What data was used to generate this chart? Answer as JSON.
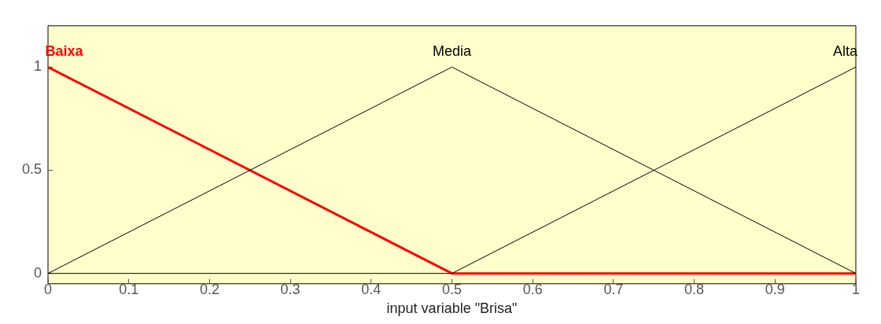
{
  "chart_data": {
    "type": "line",
    "xlabel": "input variable \"Brisa\"",
    "xlim": [
      0,
      1
    ],
    "xticks": [
      0,
      0.1,
      0.2,
      0.3,
      0.4,
      0.5,
      0.6,
      0.7,
      0.8,
      0.9,
      1
    ],
    "ylim": [
      -0.05,
      1.2
    ],
    "yticks": [
      0,
      0.5,
      1
    ],
    "grid": false,
    "legend": false,
    "marker": "none",
    "line_style": "solid",
    "series": [
      {
        "name": "Baixa",
        "color": "#ff0000",
        "x": [
          0,
          0.5,
          1
        ],
        "values": [
          1,
          0,
          0
        ]
      },
      {
        "name": "Media",
        "color": "#000000",
        "x": [
          0,
          0.5,
          1
        ],
        "values": [
          0,
          1,
          0
        ]
      },
      {
        "name": "Alta",
        "color": "#000000",
        "x": [
          0,
          0.5,
          1
        ],
        "values": [
          0,
          0,
          1
        ]
      }
    ]
  }
}
